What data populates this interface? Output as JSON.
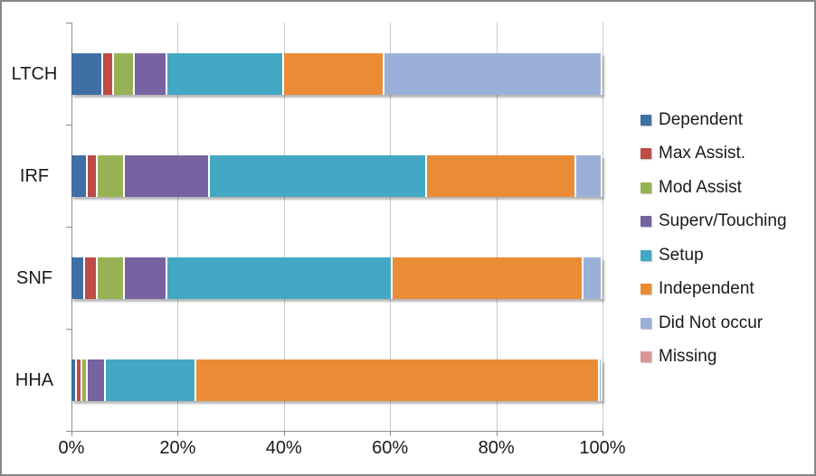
{
  "chart_data": {
    "type": "bar",
    "orientation": "horizontal",
    "stacked": true,
    "title": "",
    "xlabel": "",
    "ylabel": "",
    "grid": true,
    "legend_position": "right",
    "categories": [
      "LTCH",
      "IRF",
      "SNF",
      "HHA"
    ],
    "series": [
      {
        "name": "Dependent",
        "color": "#3F6FA5",
        "values": [
          6,
          3,
          2.5,
          1
        ]
      },
      {
        "name": "Max Assist.",
        "color": "#BE4B48",
        "values": [
          2,
          2,
          2.5,
          1
        ]
      },
      {
        "name": "Mod Assist",
        "color": "#97B254",
        "values": [
          4,
          5,
          5,
          1
        ]
      },
      {
        "name": "Superv/Touching",
        "color": "#7763A2",
        "values": [
          6,
          16,
          8,
          3.5
        ]
      },
      {
        "name": "Setup",
        "color": "#42A8C4",
        "values": [
          22,
          41,
          42.5,
          17
        ]
      },
      {
        "name": "Independent",
        "color": "#EA8B35",
        "values": [
          19,
          28,
          36,
          76
        ]
      },
      {
        "name": "Did Not occur",
        "color": "#9BB0D9",
        "values": [
          41,
          5,
          3.5,
          0.5
        ]
      },
      {
        "name": "Missing",
        "color": "#D99694",
        "values": [
          0,
          0,
          0,
          0
        ]
      }
    ],
    "x_axis": {
      "ticks": [
        "0%",
        "20%",
        "40%",
        "60%",
        "80%",
        "100%"
      ],
      "min": 0,
      "max": 100,
      "unit": "%"
    }
  }
}
